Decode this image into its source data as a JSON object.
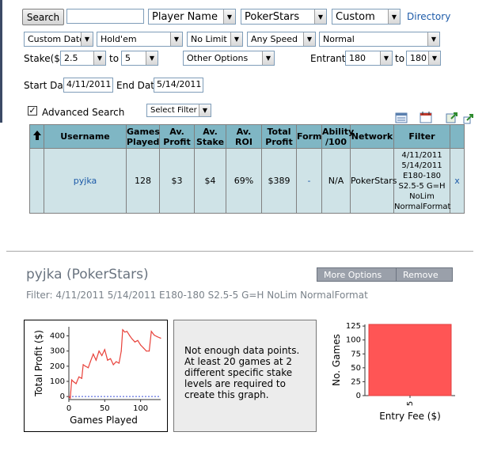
{
  "toolbar": {
    "search_button": "Search",
    "search_value": "",
    "player_name_select": "Player Name",
    "site_select": "PokerStars",
    "custom_select": "Custom",
    "directory_link": "Directory"
  },
  "filters": {
    "date_mode": "Custom Date",
    "game": "Hold'em",
    "limit": "No Limit",
    "speed": "Any Speed",
    "format": "Normal",
    "stake_label": "Stake($)",
    "stake_from": "2.5",
    "to_label1": "to",
    "stake_to": "5",
    "other_options": "Other Options",
    "entrants_label": "Entrants",
    "entrants_from": "180",
    "to_label2": "to",
    "entrants_to": "180",
    "start_date_label": "Start Date:",
    "start_date": "4/11/2011",
    "end_date_label": "End Date:",
    "end_date": "5/14/2011",
    "advanced_search_label": "Advanced Search",
    "advanced_search_checked": true,
    "select_filter": "Select Filter"
  },
  "table": {
    "headers": [
      "",
      "Username",
      "Games Played",
      "Av. Profit",
      "Av. Stake",
      "Av. ROI",
      "Total Profit",
      "Form",
      "Ability /100",
      "Network",
      "Filter",
      ""
    ],
    "header_lines": [
      [
        "Games",
        "Played"
      ],
      [
        "Av.",
        "Profit"
      ],
      [
        "Av.",
        "Stake"
      ],
      [
        "Total",
        "Profit"
      ],
      [
        "Ability",
        "/100"
      ]
    ],
    "row": {
      "username": "pyjka",
      "games_played": "128",
      "av_profit": "$3",
      "av_stake": "$4",
      "av_roi": "69%",
      "total_profit": "$389",
      "form": "-",
      "ability": "N/A",
      "network": "PokerStars",
      "filter_lines": [
        "4/11/2011",
        "5/14/2011",
        "E180-180",
        "S2.5-5 G=H",
        "NoLim",
        "NormalFormat"
      ],
      "remove": "x"
    }
  },
  "player": {
    "title": "pyjka (PokerStars)",
    "filter_text": "Filter: 4/11/2011 5/14/2011 E180-180 S2.5-5 G=H NoLim NormalFormat",
    "more_options": "More Options",
    "remove": "Remove"
  },
  "notice": {
    "text": "Not enough data points. At least 20 games at 2 different specific stake levels are required to create this graph."
  },
  "chart_data": [
    {
      "type": "line",
      "xlabel": "Games Played",
      "ylabel": "Total Profit ($)",
      "xlim": [
        0,
        128
      ],
      "ylim": [
        -20,
        460
      ],
      "x_ticks": [
        "0",
        "50",
        "100"
      ],
      "y_ticks": [
        "0",
        "100",
        "200",
        "300",
        "400"
      ],
      "baseline": 0,
      "color": "#e8413a",
      "x": [
        0,
        2,
        4,
        6,
        10,
        14,
        18,
        20,
        23,
        27,
        30,
        34,
        38,
        42,
        46,
        50,
        54,
        58,
        62,
        66,
        70,
        73,
        75,
        78,
        81,
        85,
        88,
        92,
        96,
        100,
        104,
        108,
        112,
        115,
        119,
        123,
        128
      ],
      "y": [
        0,
        -10,
        110,
        100,
        85,
        130,
        120,
        210,
        200,
        190,
        230,
        280,
        240,
        300,
        270,
        310,
        240,
        250,
        210,
        230,
        220,
        300,
        440,
        425,
        430,
        400,
        380,
        360,
        370,
        340,
        320,
        300,
        300,
        430,
        405,
        395,
        385
      ]
    },
    {
      "type": "bar",
      "xlabel": "Entry Fee ($)",
      "ylabel": "No. Games",
      "categories": [
        "5"
      ],
      "values": [
        128
      ],
      "ylim": [
        0,
        128
      ],
      "y_ticks": [
        "0",
        "25",
        "50",
        "75",
        "100",
        "125"
      ],
      "color": "#ff5555"
    }
  ]
}
